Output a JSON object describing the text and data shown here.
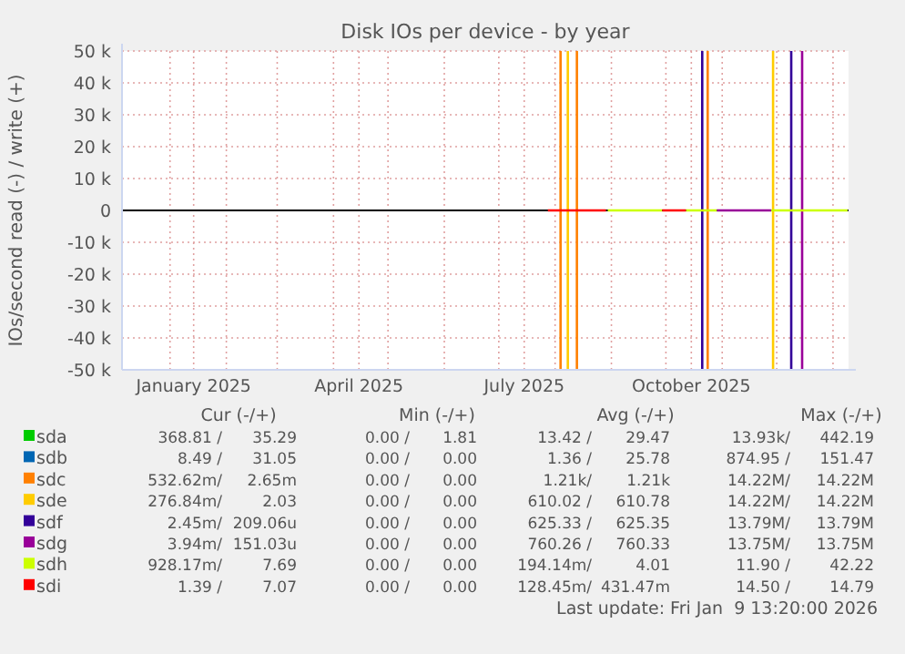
{
  "chart_data": {
    "type": "line",
    "title": "Disk IOs per device - by year",
    "ylabel": "IOs/second read (-) / write (+)",
    "xlim": [
      "2024-12-05T13:20",
      "2026-01-09T13:20"
    ],
    "xticks": [
      {
        "value": "2025-01-01",
        "label": null
      },
      {
        "value": "2025-01-14",
        "label": "January 2025"
      },
      {
        "value": "2025-02-01",
        "label": null
      },
      {
        "value": "2025-03-01",
        "label": null
      },
      {
        "value": "2025-04-01",
        "label": null
      },
      {
        "value": "2025-04-15",
        "label": "April 2025"
      },
      {
        "value": "2025-05-01",
        "label": null
      },
      {
        "value": "2025-06-01",
        "label": null
      },
      {
        "value": "2025-07-01",
        "label": null
      },
      {
        "value": "2025-07-15",
        "label": "July 2025"
      },
      {
        "value": "2025-08-01",
        "label": null
      },
      {
        "value": "2025-09-01",
        "label": null
      },
      {
        "value": "2025-10-01",
        "label": null
      },
      {
        "value": "2025-10-15",
        "label": "October 2025"
      },
      {
        "value": "2025-11-01",
        "label": null
      },
      {
        "value": "2025-12-01",
        "label": null
      },
      {
        "value": "2026-01-01",
        "label": null
      }
    ],
    "ylim": [
      -50000,
      50000
    ],
    "yticks": [
      {
        "value": -50000,
        "label": "-50 k"
      },
      {
        "value": -40000,
        "label": "-40 k"
      },
      {
        "value": -30000,
        "label": "-30 k"
      },
      {
        "value": -20000,
        "label": "-20 k"
      },
      {
        "value": -10000,
        "label": "-10 k"
      },
      0,
      {
        "value": 10000,
        "label": "10 k"
      },
      {
        "value": 20000,
        "label": "20 k"
      },
      {
        "value": 30000,
        "label": "30 k"
      },
      {
        "value": 40000,
        "label": "40 k"
      },
      {
        "value": 50000,
        "label": "50 k"
      }
    ],
    "grid": true,
    "legend": "bottom",
    "marker": "none",
    "line_style": "solid",
    "ref_lines": [
      {
        "axis": "y",
        "value": 0,
        "color": "#000000"
      }
    ],
    "series": [
      {
        "name": "sda",
        "color": "#00cc00"
      },
      {
        "name": "sdb",
        "color": "#0066b3"
      },
      {
        "name": "sdc",
        "color": "#ff8000",
        "x": [
          "2025-08-04",
          "2025-08-04",
          "2025-08-10",
          "2025-08-13",
          "2025-08-13",
          "2025-09-01",
          "2025-10-24",
          "2025-10-24"
        ],
        "values": [
          -50000,
          50000,
          null,
          -50000,
          50000,
          null,
          -50000,
          50000
        ]
      },
      {
        "name": "sde",
        "color": "#ffcc00",
        "x": [
          "2025-08-08",
          "2025-08-08",
          "2025-09-01",
          "2025-11-29",
          "2025-11-29"
        ],
        "values": [
          -50000,
          50000,
          null,
          -50000,
          50000
        ]
      },
      {
        "name": "sdf",
        "color": "#330099",
        "x": [
          "2025-10-21",
          "2025-10-21",
          "2025-11-01",
          "2025-12-09",
          "2025-12-09"
        ],
        "values": [
          -50000,
          50000,
          null,
          -50000,
          50000
        ]
      },
      {
        "name": "sdg",
        "color": "#990099",
        "x": [
          "2025-10-29",
          "2025-11-28",
          "2025-12-05",
          "2025-12-15",
          "2025-12-15"
        ],
        "values": [
          0,
          0,
          null,
          -50000,
          50000
        ]
      },
      {
        "name": "sdh",
        "color": "#ccff00",
        "x": [
          "2025-08-30",
          "2025-09-29",
          "2025-10-05",
          "2025-10-12",
          "2025-10-29",
          "2025-11-10",
          "2025-11-28",
          "2026-01-09"
        ],
        "values": [
          0,
          0,
          null,
          0,
          0,
          null,
          0,
          0
        ]
      },
      {
        "name": "sdi",
        "color": "#ff0000",
        "x": [
          "2025-07-28",
          "2025-08-29",
          "2025-09-15",
          "2025-09-29",
          "2025-10-12"
        ],
        "values": [
          0,
          0,
          null,
          0,
          0
        ]
      }
    ],
    "annotations": [
      "Cur (-/+)",
      "Min (-/+)",
      "Avg (-/+)",
      "Max (-/+)",
      "368.81 / 35.29",
      "0.00 / 1.81",
      "13.42 / 29.47",
      "13.93k/ 442.19",
      "8.49 / 31.05",
      "0.00 / 0.00",
      "1.36 / 25.78",
      "874.95 / 151.47",
      "532.62m/ 2.65m",
      "0.00 / 0.00",
      "1.21k/ 1.21k",
      "14.22M/ 14.22M",
      "276.84m/ 2.03",
      "0.00 / 0.00",
      "610.02 / 610.78",
      "14.22M/ 14.22M",
      "2.45m/ 209.06u",
      "0.00 / 0.00",
      "625.33 / 625.35",
      "13.79M/ 13.79M",
      "3.94m/ 151.03u",
      "0.00 / 0.00",
      "760.26 / 760.33",
      "13.75M/ 13.75M",
      "928.17m/ 7.69",
      "0.00 / 0.00",
      "194.14m/ 4.01",
      "11.90 / 42.22",
      "1.39 / 7.07",
      "0.00 / 0.00",
      "128.45m/ 431.47m",
      "14.50 / 14.79",
      "Last update: Fri Jan  9 13:20:00 2026"
    ]
  }
}
